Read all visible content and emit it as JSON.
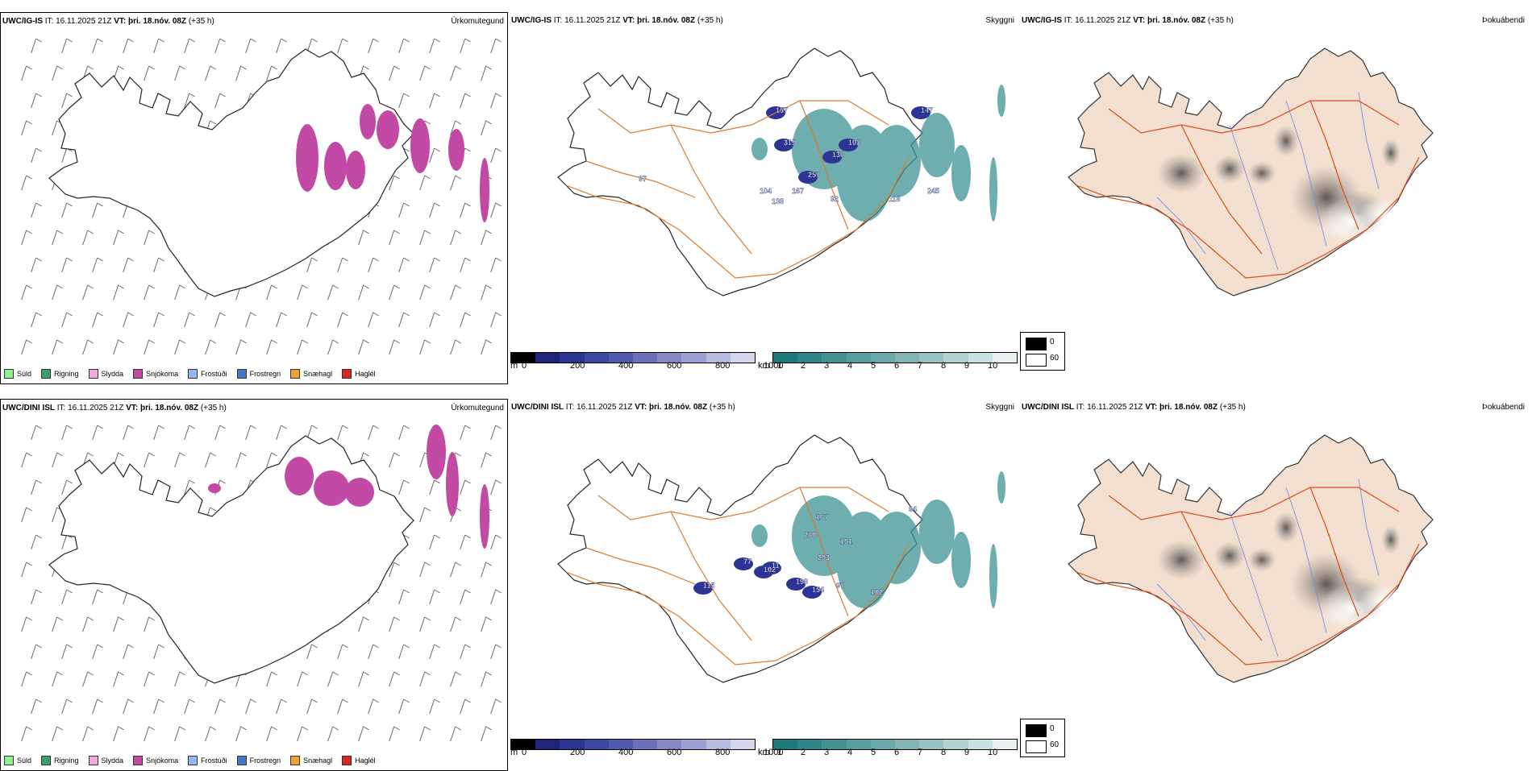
{
  "rows": [
    {
      "model": "UWC/IG-IS",
      "it_label": "IT: 16.11.2025 21Z",
      "vt_label": "VT: þri. 18.nóv. 08Z",
      "lead": "(+35 h)",
      "names": [
        "Úrkomutegund",
        "Skyggni",
        "Þokuábendi"
      ],
      "visibility_labels": [
        "157",
        "147",
        "319",
        "103",
        "136",
        "257",
        "104",
        "167",
        "138",
        "92",
        "118",
        "245",
        "97"
      ]
    },
    {
      "model": "UWC/DINI ISL",
      "it_label": "IT: 16.11.2025 21Z",
      "vt_label": "VT: þri. 18.nóv. 08Z",
      "lead": "(+35 h)",
      "names": [
        "Úrkomutegund",
        "Skyggni",
        "Þokuábendi"
      ],
      "visibility_labels": [
        "77",
        "115",
        "102",
        "11",
        "198",
        "154",
        "97",
        "102",
        "293",
        "191",
        "167",
        "94",
        "270"
      ]
    }
  ],
  "precip_legend": [
    {
      "label": "Súld",
      "color": "#90ee90"
    },
    {
      "label": "Rigning",
      "color": "#3c9a6b"
    },
    {
      "label": "Slydda",
      "color": "#f2a9d6"
    },
    {
      "label": "Snjókoma",
      "color": "#c24aa4"
    },
    {
      "label": "Frostúði",
      "color": "#8fbdeb"
    },
    {
      "label": "Frostregn",
      "color": "#3e7bc5"
    },
    {
      "label": "Snæhagl",
      "color": "#f0a030"
    },
    {
      "label": "Haglél",
      "color": "#e01f1f"
    }
  ],
  "ceiling_bar": {
    "unit": "m",
    "ticks": [
      "0",
      "200",
      "400",
      "600",
      "800",
      "1000"
    ],
    "colors": [
      "#000000",
      "#1f237a",
      "#2e3495",
      "#3d46a5",
      "#5459b0",
      "#6a70bb",
      "#8488c6",
      "#9c9fd2",
      "#b8badf",
      "#d5d6ec"
    ]
  },
  "visibility_bar": {
    "unit": "km",
    "ticks": [
      "1",
      "2",
      "3",
      "4",
      "5",
      "6",
      "7",
      "8",
      "9",
      "10"
    ],
    "colors": [
      "#1f7a7a",
      "#2f8686",
      "#439191",
      "#579d9d",
      "#6ba9a9",
      "#82b6b6",
      "#99c3c3",
      "#b2d1d1",
      "#cbe0e0",
      "#e8f1f1"
    ]
  },
  "fog_bins": [
    {
      "label": "0",
      "color": "#000000"
    },
    {
      "label": "60",
      "color": "#ffffff"
    }
  ],
  "colors": {
    "snow": "#c24aa4",
    "road": "#e07a2a",
    "road_fog": "#e04a1a",
    "river": "#7b8ee8",
    "land_fog": "#f3e0d0",
    "vis_teal": "#3e9393",
    "ceiling_blue": "#2e3495"
  }
}
